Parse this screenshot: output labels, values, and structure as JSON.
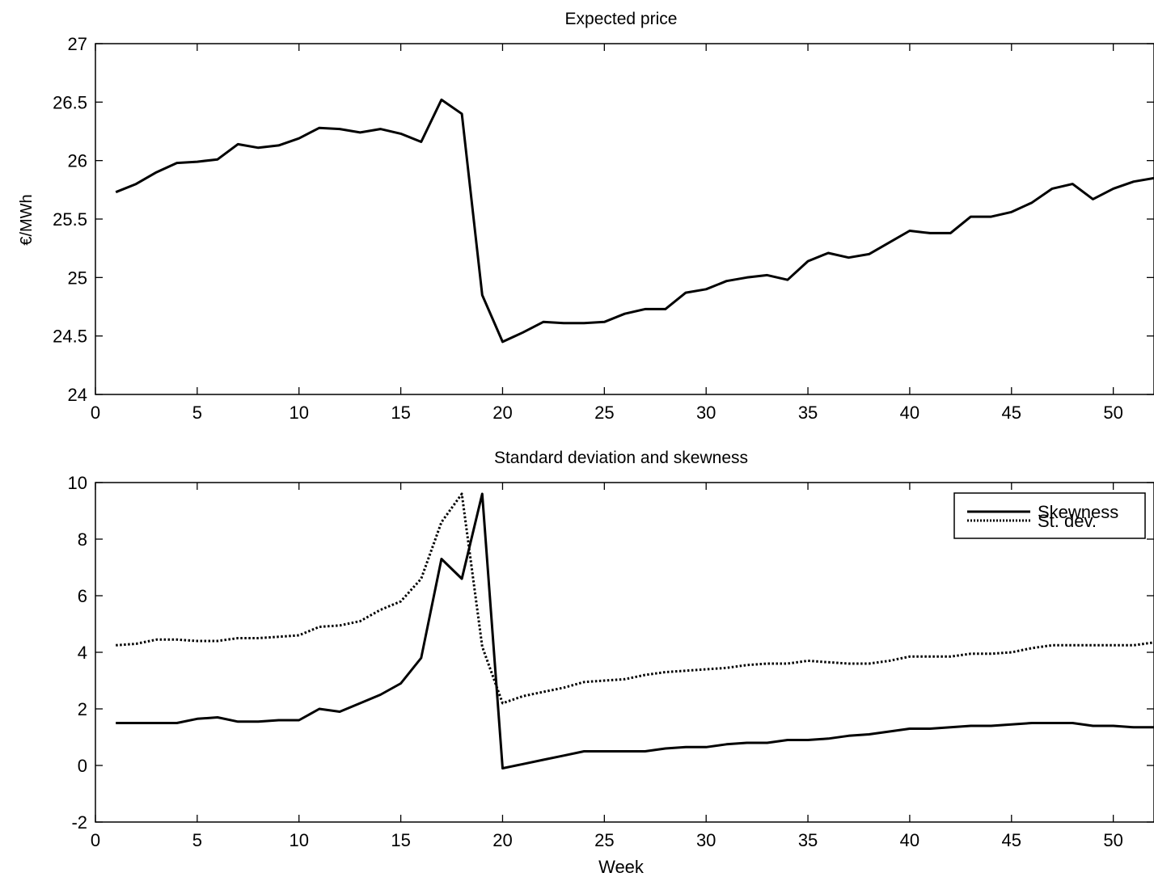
{
  "chart_data": [
    {
      "type": "line",
      "title": "Expected price",
      "xlabel": "",
      "ylabel": "€/MWh",
      "xlim": [
        0,
        52
      ],
      "ylim": [
        24,
        27
      ],
      "xticks": [
        0,
        5,
        10,
        15,
        20,
        25,
        30,
        35,
        40,
        45,
        50
      ],
      "yticks": [
        24,
        24.5,
        25,
        25.5,
        26,
        26.5,
        27
      ],
      "ytick_labels": [
        "24",
        "24.5",
        "25",
        "25.5",
        "26",
        "26.5",
        "27"
      ],
      "grid": false,
      "x": [
        1,
        2,
        3,
        4,
        5,
        6,
        7,
        8,
        9,
        10,
        11,
        12,
        13,
        14,
        15,
        16,
        17,
        18,
        19,
        20,
        21,
        22,
        23,
        24,
        25,
        26,
        27,
        28,
        29,
        30,
        31,
        32,
        33,
        34,
        35,
        36,
        37,
        38,
        39,
        40,
        41,
        42,
        43,
        44,
        45,
        46,
        47,
        48,
        49,
        50,
        51,
        52
      ],
      "series": [
        {
          "style": "solid",
          "color": "#000000",
          "values": [
            25.73,
            25.8,
            25.9,
            25.98,
            25.99,
            26.01,
            26.14,
            26.11,
            26.13,
            26.19,
            26.28,
            26.27,
            26.24,
            26.27,
            26.23,
            26.16,
            26.52,
            26.4,
            24.85,
            24.45,
            24.53,
            24.62,
            24.61,
            24.61,
            24.62,
            24.69,
            24.73,
            24.73,
            24.87,
            24.9,
            24.97,
            25.0,
            25.02,
            24.98,
            25.14,
            25.21,
            25.17,
            25.2,
            25.3,
            25.4,
            25.38,
            25.38,
            25.52,
            25.52,
            25.56,
            25.64,
            25.76,
            25.8,
            25.67,
            25.76,
            25.82,
            25.85
          ]
        }
      ]
    },
    {
      "type": "line",
      "title": "Standard deviation and skewness",
      "xlabel": "Week",
      "ylabel": "",
      "xlim": [
        0,
        52
      ],
      "ylim": [
        -2,
        10
      ],
      "xticks": [
        0,
        5,
        10,
        15,
        20,
        25,
        30,
        35,
        40,
        45,
        50
      ],
      "yticks": [
        -2,
        0,
        2,
        4,
        6,
        8,
        10
      ],
      "ytick_labels": [
        "-2",
        "0",
        "2",
        "4",
        "6",
        "8",
        "10"
      ],
      "grid": false,
      "legend": "top-right",
      "x": [
        1,
        2,
        3,
        4,
        5,
        6,
        7,
        8,
        9,
        10,
        11,
        12,
        13,
        14,
        15,
        16,
        17,
        18,
        19,
        20,
        21,
        22,
        23,
        24,
        25,
        26,
        27,
        28,
        29,
        30,
        31,
        32,
        33,
        34,
        35,
        36,
        37,
        38,
        39,
        40,
        41,
        42,
        43,
        44,
        45,
        46,
        47,
        48,
        49,
        50,
        51,
        52
      ],
      "series": [
        {
          "name": "Skewness",
          "style": "solid",
          "color": "#000000",
          "values": [
            1.5,
            1.5,
            1.5,
            1.5,
            1.65,
            1.7,
            1.55,
            1.55,
            1.6,
            1.6,
            2.0,
            1.9,
            2.2,
            2.5,
            2.9,
            3.8,
            7.3,
            6.6,
            9.6,
            -0.1,
            0.05,
            0.2,
            0.35,
            0.5,
            0.5,
            0.5,
            0.5,
            0.6,
            0.65,
            0.65,
            0.75,
            0.8,
            0.8,
            0.9,
            0.9,
            0.95,
            1.05,
            1.1,
            1.2,
            1.3,
            1.3,
            1.35,
            1.4,
            1.4,
            1.45,
            1.5,
            1.5,
            1.5,
            1.4,
            1.4,
            1.35,
            1.35
          ]
        },
        {
          "name": "St. dev.",
          "style": "dotted",
          "color": "#000000",
          "values": [
            4.25,
            4.3,
            4.45,
            4.45,
            4.4,
            4.4,
            4.5,
            4.5,
            4.55,
            4.6,
            4.9,
            4.95,
            5.1,
            5.5,
            5.8,
            6.6,
            8.6,
            9.6,
            4.2,
            2.2,
            2.45,
            2.6,
            2.75,
            2.95,
            3.0,
            3.05,
            3.2,
            3.3,
            3.35,
            3.4,
            3.45,
            3.55,
            3.6,
            3.6,
            3.7,
            3.65,
            3.6,
            3.6,
            3.7,
            3.85,
            3.85,
            3.85,
            3.95,
            3.95,
            4.0,
            4.15,
            4.25,
            4.25,
            4.25,
            4.25,
            4.25,
            4.35
          ]
        }
      ]
    }
  ]
}
